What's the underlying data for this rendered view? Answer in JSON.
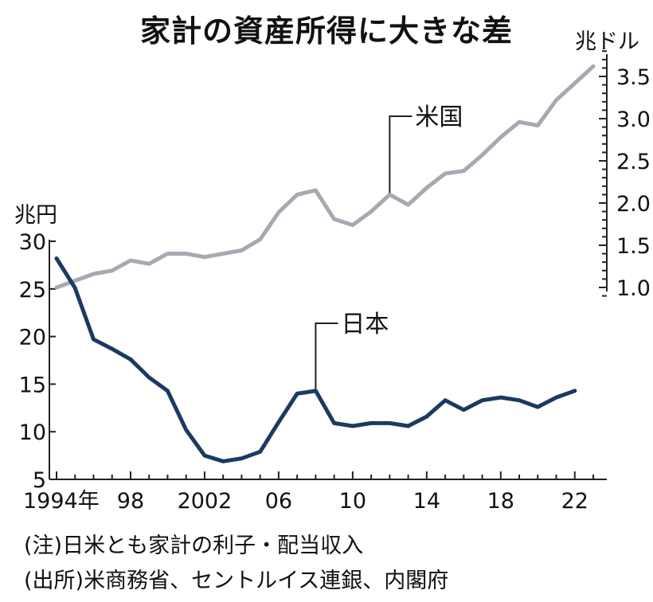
{
  "title": "家計の資産所得に大きな差",
  "left_unit": "兆円",
  "right_unit": "兆ドル",
  "notes": [
    "(注)日米とも家計の利子・配当収入",
    "(出所)米商務省、セントルイス連銀、内閣府"
  ],
  "chart_data": {
    "type": "line",
    "title": "家計の資産所得に大きな差",
    "x_tick_labels": [
      "1994年",
      "98",
      "2002",
      "06",
      "10",
      "14",
      "18",
      "22"
    ],
    "x_tick_values": [
      1994,
      1998,
      2002,
      2006,
      2010,
      2014,
      2018,
      2022
    ],
    "xlim": [
      1994,
      2023
    ],
    "y_left": {
      "unit": "兆円",
      "ylim": [
        5,
        30
      ],
      "ticks": [
        5,
        10,
        15,
        20,
        25,
        30
      ]
    },
    "y_right": {
      "unit": "兆ドル",
      "ylim": [
        0.86,
        3.88
      ],
      "ticks": [
        1.0,
        1.5,
        2.0,
        2.5,
        3.0,
        3.5
      ],
      "tick_labels": [
        "1.0",
        "1.5",
        "2.0",
        "2.5",
        "3.0",
        "3.5"
      ]
    },
    "grid": false,
    "series": [
      {
        "name": "米国",
        "axis": "right",
        "color": "#a7a9b2",
        "x": [
          1994,
          1995,
          1996,
          1997,
          1998,
          1999,
          2000,
          2001,
          2002,
          2003,
          2004,
          2005,
          2006,
          2007,
          2008,
          2009,
          2010,
          2011,
          2012,
          2013,
          2014,
          2015,
          2016,
          2017,
          2018,
          2019,
          2020,
          2021,
          2022,
          2023
        ],
        "values": [
          1.0,
          1.08,
          1.16,
          1.2,
          1.32,
          1.28,
          1.4,
          1.4,
          1.36,
          1.4,
          1.44,
          1.57,
          1.89,
          2.1,
          2.15,
          1.81,
          1.74,
          1.9,
          2.1,
          1.98,
          2.18,
          2.35,
          2.38,
          2.57,
          2.78,
          2.96,
          2.92,
          3.22,
          3.42,
          3.62
        ],
        "label_year": 2012
      },
      {
        "name": "日本",
        "axis": "left",
        "color": "#1b3a63",
        "x": [
          1994,
          1995,
          1996,
          1997,
          1998,
          1999,
          2000,
          2001,
          2002,
          2003,
          2004,
          2005,
          2006,
          2007,
          2008,
          2009,
          2010,
          2011,
          2012,
          2013,
          2014,
          2015,
          2016,
          2017,
          2018,
          2019,
          2020,
          2021,
          2022
        ],
        "values": [
          28.2,
          25.1,
          19.7,
          18.7,
          17.6,
          15.7,
          14.3,
          10.2,
          7.5,
          6.9,
          7.2,
          7.9,
          11,
          14,
          14.3,
          10.9,
          10.6,
          10.9,
          10.9,
          10.6,
          11.6,
          13.3,
          12.3,
          13.3,
          13.6,
          13.3,
          12.6,
          13.6,
          14.3
        ],
        "label_year": 2008
      }
    ]
  }
}
